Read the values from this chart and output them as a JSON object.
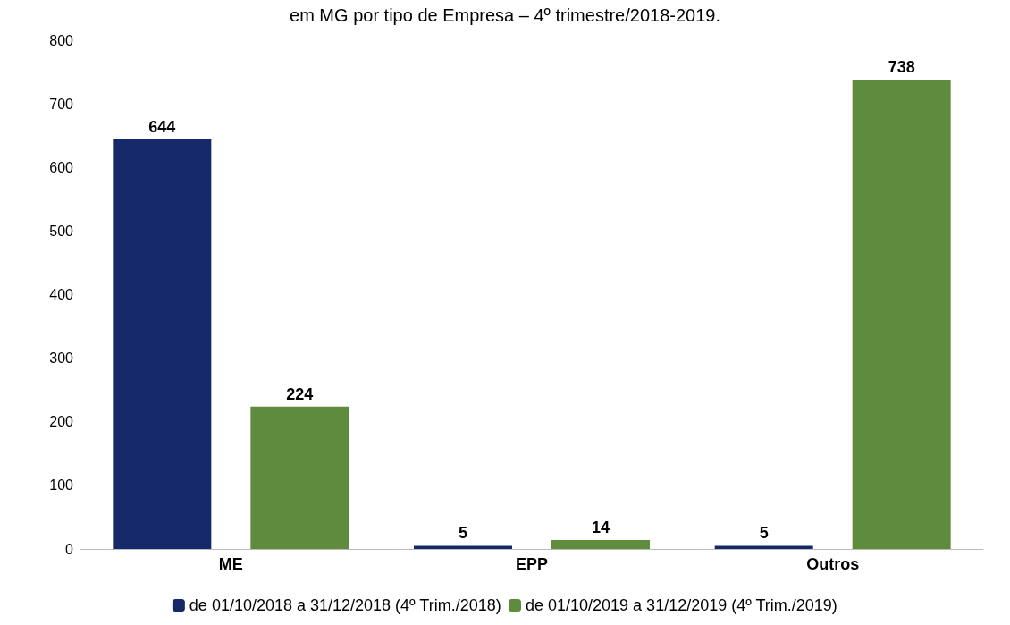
{
  "chart_data": {
    "type": "bar",
    "title": "em MG por tipo de Empresa – 4º trimestre/2018-2019.",
    "categories": [
      "ME",
      "EPP",
      "Outros"
    ],
    "series": [
      {
        "name": "de 01/10/2018 a 31/12/2018 (4º Trim./2018)",
        "color": "#14286a",
        "values": [
          644,
          5,
          5
        ]
      },
      {
        "name": "de 01/10/2019 a 31/12/2019 (4º Trim./2019)",
        "color": "#5e8c3c",
        "values": [
          224,
          14,
          738
        ]
      }
    ],
    "ylim": [
      0,
      800
    ],
    "yticks": [
      0,
      100,
      200,
      300,
      400,
      500,
      600,
      700,
      800
    ],
    "data_labels": true,
    "legend": "bottom",
    "grid": false
  }
}
